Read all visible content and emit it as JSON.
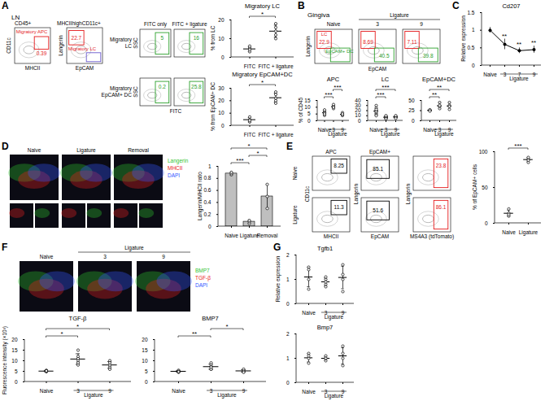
{
  "panels": {
    "A": {
      "letter": "A",
      "tissue": "LN",
      "gating": [
        {
          "title": "CD45+",
          "x_label": "MHCII",
          "y_label": "CD11c",
          "gates": [
            {
              "name": "Migratory APC",
              "value": 0.39,
              "color": "#e41a1c"
            }
          ]
        },
        {
          "title": "MHCIIhighCD11c+",
          "x_label": "EpCAM",
          "y_label": "Langerin",
          "gates": [
            {
              "name": "Migratory LC",
              "value": 22.7,
              "color": "#e41a1c"
            },
            {
              "color": "#6a5acd"
            }
          ]
        }
      ],
      "fitc": {
        "columns": [
          "FITC only",
          "FITC + ligature"
        ],
        "x_label": "FITC",
        "y_label": "SSC",
        "color": "#2ca02c",
        "rows": [
          {
            "name": "Migratory LC",
            "values": [
              5,
              16
            ]
          },
          {
            "name": "Migratory EpCAM+ DC",
            "values": [
              0.2,
              25.8
            ]
          }
        ]
      }
    },
    "B": {
      "letter": "B",
      "tissue": "Gingiva",
      "group_label": "Ligature",
      "columns": [
        "Naive",
        "3",
        "9"
      ],
      "x_label": "EpCAM",
      "y_label": "Langerin",
      "gates": [
        {
          "name": "LC",
          "color": "#e41a1c",
          "values": [
            22.9,
            8.69,
            7.11
          ]
        },
        {
          "name": "EpCAM+ DC",
          "color": "#2ca02c",
          "values": [
            null,
            40.5,
            39.8
          ]
        }
      ]
    },
    "C": {
      "letter": "C"
    },
    "D": {
      "letter": "D",
      "columns": [
        "Naive",
        "Ligature",
        "Removal"
      ],
      "channels": [
        {
          "name": "Langerin",
          "color": "#2fc42f"
        },
        {
          "name": "MHCII",
          "color": "#e82020"
        },
        {
          "name": "DAPI",
          "color": "#3355ff"
        }
      ]
    },
    "E": {
      "letter": "E",
      "rows": [
        "Naive",
        "Ligature"
      ],
      "columns": [
        {
          "title": "APC",
          "x_label": "MHCII",
          "y_label": "CD11c",
          "color": "#000000"
        },
        {
          "title": "EpCAM+",
          "x_label": "EpCAM",
          "y_label": "Langerin",
          "color": "#000000"
        },
        {
          "x_label": "MS4A3 (tdTomato)",
          "y_label": "Langerin",
          "color": "#e41a1c"
        }
      ],
      "values": [
        [
          8.25,
          85.1,
          23.8
        ],
        [
          11.3,
          51.6,
          86.1
        ]
      ]
    },
    "F": {
      "letter": "F",
      "group_label": "Ligature",
      "columns": [
        "Naive",
        "3",
        "9"
      ],
      "channels": [
        {
          "name": "BMP7",
          "color": "#2fc42f"
        },
        {
          "name": "TGF-β",
          "color": "#e82020"
        },
        {
          "name": "DAPI",
          "color": "#3355ff"
        }
      ]
    },
    "G": {
      "letter": "G"
    }
  },
  "chart_data": [
    {
      "type": "dotplot",
      "title": "Migratory LC",
      "categories": [
        "FITC",
        "FITC + ligature"
      ],
      "ylabel": "% from LC",
      "ylim": [
        0,
        20
      ],
      "yticks": [
        0,
        10,
        20
      ],
      "values": [
        4.5,
        14
      ],
      "errors": [
        1.3,
        3.2
      ],
      "points": [
        [
          3,
          5,
          6,
          4
        ],
        [
          10,
          14,
          16,
          12,
          18
        ]
      ],
      "color": "#000000",
      "significance": [
        {
          "from": "FITC",
          "to": "FITC + ligature",
          "label": "*"
        }
      ]
    },
    {
      "type": "dotplot",
      "title": "Migratory EpCAM+DC",
      "categories": [
        "FITC",
        "FITC + ligature"
      ],
      "ylabel": "% from EpCAM+ DC",
      "ylim": [
        0,
        30
      ],
      "yticks": [
        0,
        10,
        20,
        30
      ],
      "values": [
        4.8,
        22.4
      ],
      "errors": [
        1.7,
        3.6
      ],
      "points": [
        [
          3,
          5,
          4,
          7
        ],
        [
          18,
          22,
          27,
          20,
          25
        ]
      ],
      "color": "#000000",
      "significance": [
        {
          "from": "FITC",
          "to": "FITC + ligature",
          "label": "*"
        }
      ]
    },
    {
      "type": "dotplot",
      "title": "APC",
      "categories": [
        "Naive",
        "3",
        "9"
      ],
      "x_group_label": "Ligature",
      "x_group": [
        "3",
        "9"
      ],
      "ylabel": "% of CD45",
      "ylim": [
        0,
        15
      ],
      "yticks": [
        0,
        5,
        10,
        15
      ],
      "values": [
        5.9,
        10.4,
        4.8
      ],
      "errors": [
        1.3,
        1.1,
        0.8
      ],
      "points": [
        [
          5,
          6,
          4,
          7,
          6,
          5,
          8
        ],
        [
          10,
          11,
          9,
          12,
          10
        ],
        [
          4,
          5,
          6,
          4,
          5
        ]
      ],
      "color": "#000000",
      "significance": [
        {
          "from": "Naive",
          "to": "3",
          "label": "***"
        },
        {
          "from": "3",
          "to": "9",
          "label": "***"
        }
      ]
    },
    {
      "type": "dotplot",
      "title": "LC",
      "categories": [
        "Naive",
        "3",
        "9"
      ],
      "x_group_label": "Ligature",
      "x_group": [
        "3",
        "9"
      ],
      "ylim": [
        0,
        40
      ],
      "yticks": [
        0,
        10,
        20,
        30,
        40
      ],
      "values": [
        19,
        7,
        7.5
      ],
      "errors": [
        7,
        2,
        1.8
      ],
      "points": [
        [
          25,
          15,
          20,
          30,
          18,
          22,
          12,
          10
        ],
        [
          8,
          6,
          7,
          9,
          5,
          10,
          4
        ],
        [
          8,
          9,
          7,
          6,
          10,
          5
        ]
      ],
      "color": "#000000",
      "significance": [
        {
          "from": "Naive",
          "to": "3",
          "label": "***"
        },
        {
          "from": "Naive",
          "to": "9",
          "label": "***"
        }
      ]
    },
    {
      "type": "dotplot",
      "title": "EpCAM+DC",
      "categories": [
        "Naive",
        "3",
        "9"
      ],
      "x_group_label": "Ligature",
      "x_group": [
        "3",
        "9"
      ],
      "ylim": [
        0,
        50
      ],
      "yticks": [
        0,
        25,
        50
      ],
      "values": [
        25.5,
        37,
        36.5
      ],
      "errors": [
        1.3,
        6.2,
        7.1
      ],
      "points": [
        [
          25,
          26,
          27,
          24
        ],
        [
          30,
          35,
          45,
          38
        ],
        [
          28,
          38,
          45,
          35
        ]
      ],
      "color": "#000000",
      "significance": [
        {
          "from": "Naive",
          "to": "3",
          "label": "**"
        },
        {
          "from": "Naive",
          "to": "9",
          "label": "**"
        }
      ]
    },
    {
      "type": "line",
      "title": "Cd207",
      "categories": [
        "Naive",
        "3",
        "7",
        "9"
      ],
      "x_group_label": "Ligature",
      "x_group": [
        "3",
        "7",
        "9"
      ],
      "ylabel": "Relative expression",
      "ylim": [
        0,
        1.5
      ],
      "yticks": [
        0,
        0.5,
        1,
        1.5
      ],
      "values": [
        1,
        0.6,
        0.42,
        0.45
      ],
      "errors": [
        0.08,
        0.15,
        0.08,
        0.1
      ],
      "color": "#000000",
      "significance": [
        {
          "at": "3",
          "label": "**"
        },
        {
          "at": "7",
          "label": "**"
        },
        {
          "at": "9",
          "label": "**"
        }
      ]
    },
    {
      "type": "bar",
      "categories": [
        "Naive",
        "Ligature",
        "Removal"
      ],
      "ylabel": "Langerin/MHCII ratio",
      "ylim": [
        0,
        1
      ],
      "yticks": [
        0,
        0.2,
        0.4,
        0.6,
        0.8,
        1
      ],
      "values": [
        0.88,
        0.08,
        0.5
      ],
      "errors": [
        0.03,
        0.03,
        0.2
      ],
      "points": [
        [
          0.86,
          0.88,
          0.9
        ],
        [
          0.05,
          0.08,
          0.1
        ],
        [
          0.3,
          0.5,
          0.7
        ]
      ],
      "color": "#bfbfbf",
      "significance": [
        {
          "from": "Naive",
          "to": "Ligature",
          "label": "***"
        },
        {
          "from": "Ligature",
          "to": "Removal",
          "label": "*"
        },
        {
          "from": "Naive",
          "to": "Removal",
          "label": "*"
        }
      ]
    },
    {
      "type": "dotplot",
      "categories": [
        "Naive",
        "Ligature"
      ],
      "ylabel": "% of EpCAM+ cells",
      "ylim": [
        0,
        100
      ],
      "yticks": [
        0,
        50,
        100
      ],
      "values": [
        14,
        89
      ],
      "errors": [
        4,
        3
      ],
      "points": [
        [
          10,
          14,
          20,
          12
        ],
        [
          85,
          90,
          88,
          92
        ]
      ],
      "color": "#000000",
      "significance": [
        {
          "from": "Naive",
          "to": "Ligature",
          "label": "***"
        }
      ]
    },
    {
      "type": "dotplot",
      "title": "TGF-β",
      "categories": [
        "Naive",
        "3",
        "9"
      ],
      "x_group_label": "Ligature",
      "x_group": [
        "3",
        "9"
      ],
      "ylabel": "Fluorescence intensity (×10³)",
      "ylim": [
        0,
        20
      ],
      "yticks": [
        0,
        5,
        10,
        15,
        20
      ],
      "values": [
        5.1,
        10.8,
        8
      ],
      "errors": [
        0.3,
        2.5,
        1.6
      ],
      "points": [
        [
          5,
          5,
          5.5,
          4.8,
          5.2
        ],
        [
          10,
          12,
          15,
          8,
          11,
          9
        ],
        [
          7,
          8,
          10,
          6,
          9
        ]
      ],
      "color": "#000000",
      "significance": [
        {
          "from": "Naive",
          "to": "3",
          "label": "*"
        },
        {
          "from": "Naive",
          "to": "9",
          "label": "*"
        }
      ]
    },
    {
      "type": "dotplot",
      "title": "BMP7",
      "categories": [
        "Naive",
        "3",
        "9"
      ],
      "x_group_label": "Ligature",
      "x_group": [
        "3",
        "9"
      ],
      "ylim": [
        0,
        20
      ],
      "yticks": [
        0,
        5,
        10,
        15,
        20
      ],
      "values": [
        5,
        7.2,
        5.2
      ],
      "errors": [
        0.4,
        1.2,
        0.6
      ],
      "points": [
        [
          4.5,
          5,
          5.5,
          5,
          4.8
        ],
        [
          6,
          8,
          7,
          9,
          6,
          7
        ],
        [
          5,
          5.5,
          6,
          5,
          4.5
        ]
      ],
      "color": "#000000",
      "significance": [
        {
          "from": "Naive",
          "to": "3",
          "label": "**"
        },
        {
          "from": "3",
          "to": "9",
          "label": "*"
        }
      ]
    },
    {
      "type": "dotplot",
      "title": "Tgfb1",
      "categories": [
        "Naive",
        "3",
        "9"
      ],
      "x_group_label": "Ligature",
      "x_group": [
        "3",
        "9"
      ],
      "ylabel": "Relative expression",
      "ylim": [
        0,
        2
      ],
      "yticks": [
        0,
        1,
        2
      ],
      "values": [
        1.1,
        0.9,
        1.08
      ],
      "errors": [
        0.4,
        0.16,
        0.46
      ],
      "points": [
        [
          1.5,
          0.6,
          1,
          1.4
        ],
        [
          0.8,
          1,
          0.9,
          1.1,
          0.7
        ],
        [
          1.2,
          0.5,
          1.6,
          1
        ]
      ],
      "color": "#000000"
    },
    {
      "type": "dotplot",
      "title": "Bmp7",
      "categories": [
        "Naive",
        "3",
        "9"
      ],
      "x_group_label": "Ligature",
      "x_group": [
        "3",
        "9"
      ],
      "ylim": [
        0,
        2
      ],
      "yticks": [
        0,
        1,
        2
      ],
      "values": [
        1.02,
        1,
        1.1
      ],
      "errors": [
        0.17,
        0.08,
        0.33
      ],
      "points": [
        [
          1,
          0.8,
          1.2,
          1.1
        ],
        [
          0.9,
          1,
          1.1,
          1
        ],
        [
          0.7,
          1.2,
          1.5,
          1
        ]
      ],
      "color": "#000000"
    }
  ]
}
